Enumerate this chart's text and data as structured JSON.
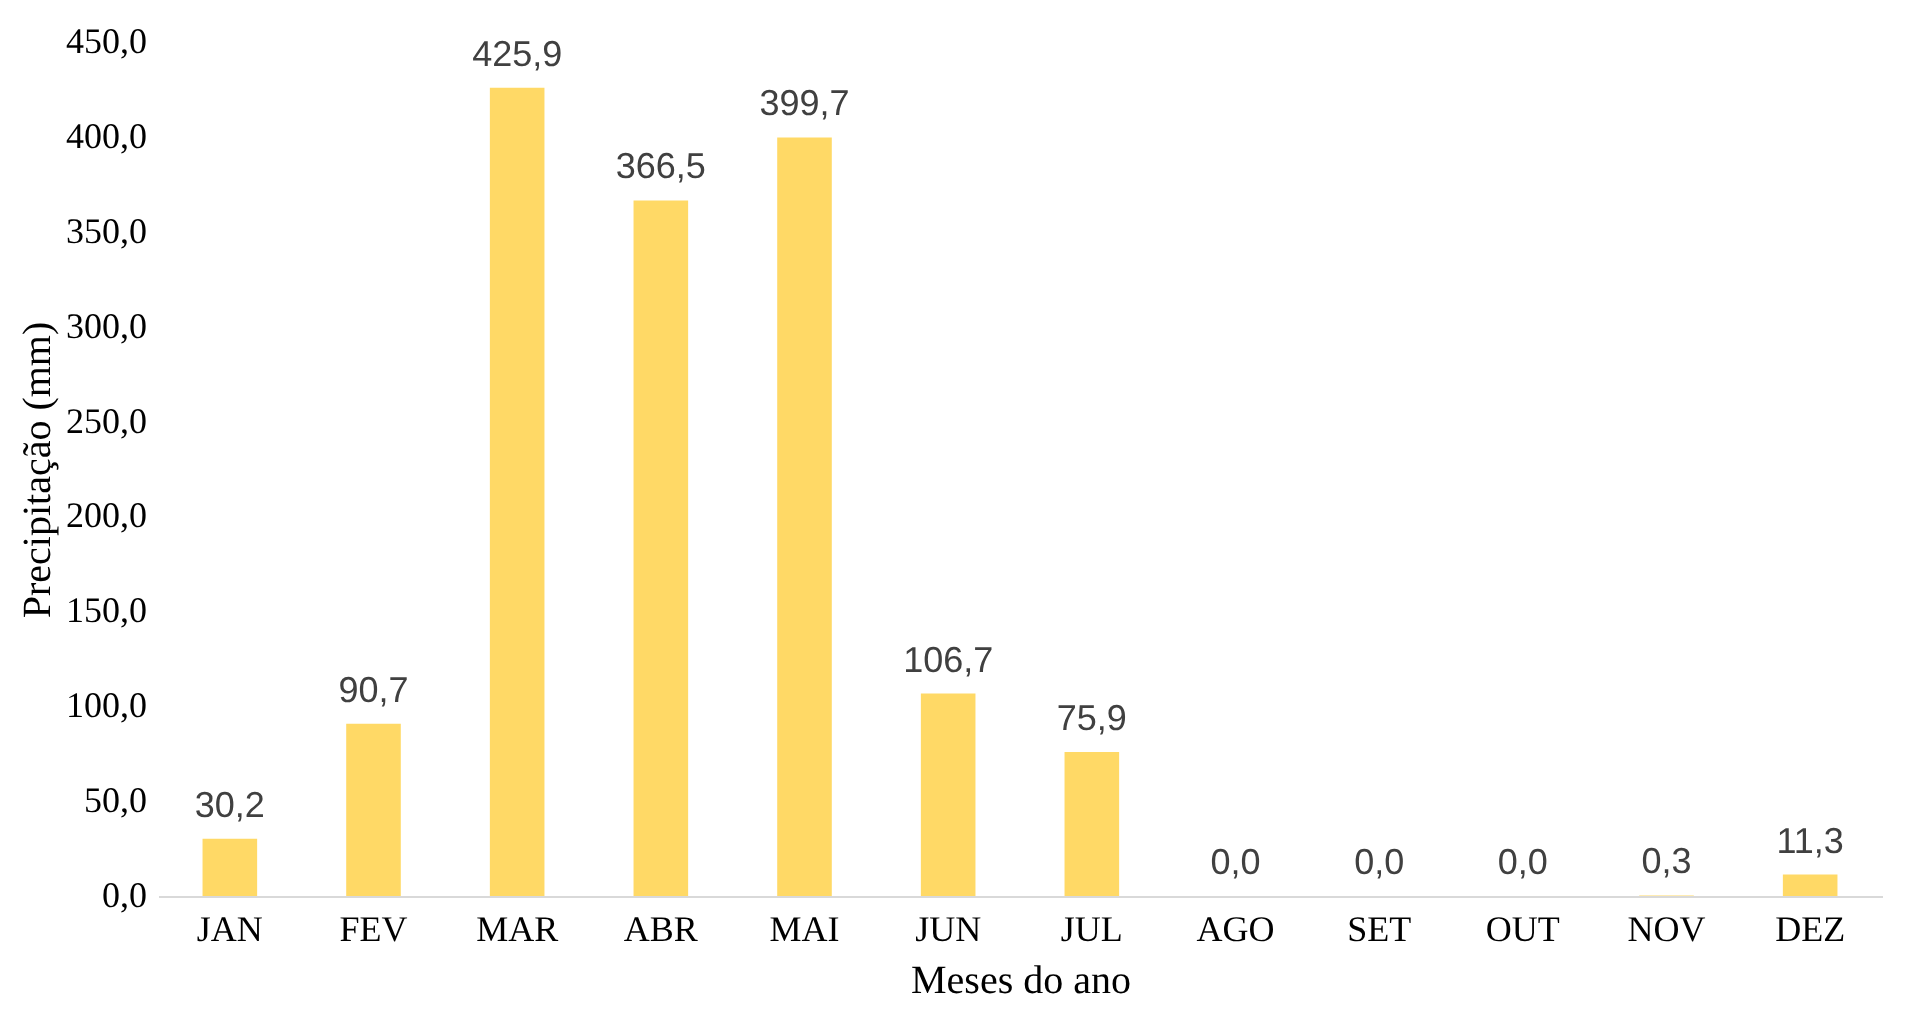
{
  "chart_data": {
    "type": "bar",
    "xlabel": "Meses do ano",
    "ylabel": "Precipitação (mm)",
    "categories": [
      "JAN",
      "FEV",
      "MAR",
      "ABR",
      "MAI",
      "JUN",
      "JUL",
      "AGO",
      "SET",
      "OUT",
      "NOV",
      "DEZ"
    ],
    "values": [
      30.2,
      90.7,
      425.9,
      366.5,
      399.7,
      106.7,
      75.9,
      0.0,
      0.0,
      0.0,
      0.3,
      11.3
    ],
    "value_labels": [
      "30,2",
      "90,7",
      "425,9",
      "366,5",
      "399,7",
      "106,7",
      "75,9",
      "0,0",
      "0,0",
      "0,0",
      "0,3",
      "11,3"
    ],
    "color": "#ffd966",
    "ylim": [
      0,
      450
    ],
    "yticks": [
      {
        "value": 0,
        "label": "0,0"
      },
      {
        "value": 50,
        "label": "50,0"
      },
      {
        "value": 100,
        "label": "100,0"
      },
      {
        "value": 150,
        "label": "150,0"
      },
      {
        "value": 200,
        "label": "200,0"
      },
      {
        "value": 250,
        "label": "250,0"
      },
      {
        "value": 300,
        "label": "300,0"
      },
      {
        "value": 350,
        "label": "350,0"
      },
      {
        "value": 400,
        "label": "400,0"
      },
      {
        "value": 450,
        "label": "450,0"
      }
    ],
    "grid": false
  }
}
